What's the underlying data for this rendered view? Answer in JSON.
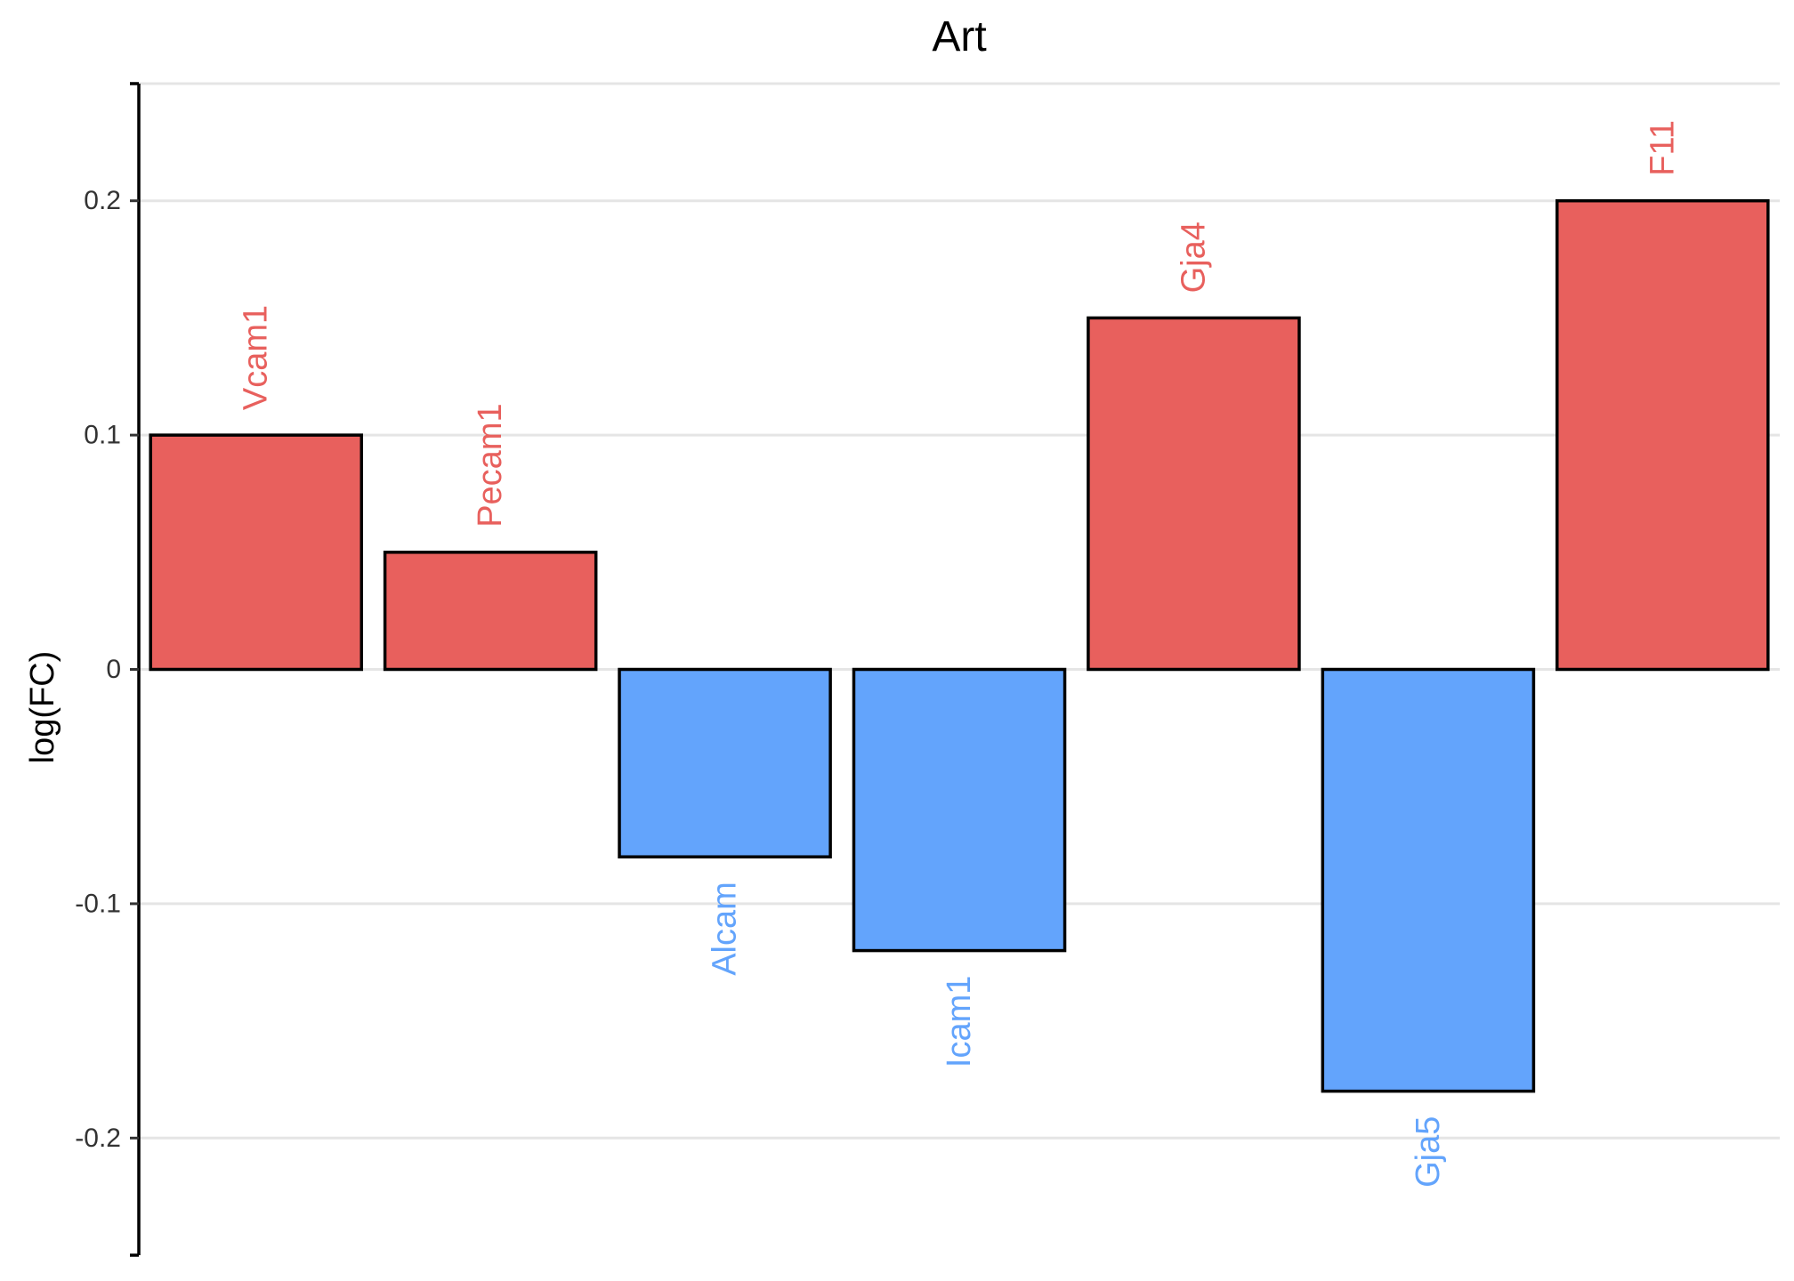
{
  "chart_data": {
    "type": "bar",
    "title": "Art",
    "xlabel": "",
    "ylabel": "log(FC)",
    "ylim": [
      -0.25,
      0.25
    ],
    "yticks": [
      0.2,
      0.1,
      0,
      -0.1,
      -0.2
    ],
    "ytick_labels": [
      "0.2",
      "0.1",
      "0",
      "-0.1",
      "-0.2"
    ],
    "grid": "horizontal",
    "categories": [
      "Vcam1",
      "Pecam1",
      "Alcam",
      "Icam1",
      "Gja4",
      "Gja5",
      "F11"
    ],
    "values": [
      0.1,
      0.05,
      -0.08,
      -0.12,
      0.15,
      -0.18,
      0.2
    ],
    "colors": {
      "positive": "#E8605D",
      "negative": "#63A4FC",
      "bar_outline": "#000000",
      "grid": "#E5E5E5",
      "axis": "#000000"
    }
  }
}
